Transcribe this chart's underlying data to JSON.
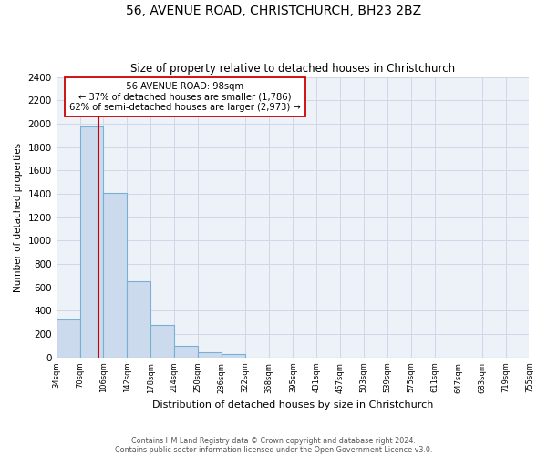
{
  "title": "56, AVENUE ROAD, CHRISTCHURCH, BH23 2BZ",
  "subtitle": "Size of property relative to detached houses in Christchurch",
  "xlabel": "Distribution of detached houses by size in Christchurch",
  "ylabel": "Number of detached properties",
  "bin_edges": [
    34,
    70,
    106,
    142,
    178,
    214,
    250,
    286,
    322,
    358,
    395,
    431,
    467,
    503,
    539,
    575,
    611,
    647,
    683,
    719,
    755
  ],
  "bin_heights": [
    325,
    1975,
    1410,
    650,
    280,
    100,
    45,
    30,
    0,
    0,
    0,
    0,
    0,
    0,
    0,
    0,
    0,
    0,
    0,
    0
  ],
  "bar_color": "#ccdaee",
  "bar_edge_color": "#7aafd4",
  "vline_x": 98,
  "vline_color": "#cc0000",
  "annotation_title": "56 AVENUE ROAD: 98sqm",
  "annotation_line1": "← 37% of detached houses are smaller (1,786)",
  "annotation_line2": "62% of semi-detached houses are larger (2,973) →",
  "annotation_box_edge": "#cc0000",
  "ylim": [
    0,
    2400
  ],
  "yticks": [
    0,
    200,
    400,
    600,
    800,
    1000,
    1200,
    1400,
    1600,
    1800,
    2000,
    2200,
    2400
  ],
  "tick_labels": [
    "34sqm",
    "70sqm",
    "106sqm",
    "142sqm",
    "178sqm",
    "214sqm",
    "250sqm",
    "286sqm",
    "322sqm",
    "358sqm",
    "395sqm",
    "431sqm",
    "467sqm",
    "503sqm",
    "539sqm",
    "575sqm",
    "611sqm",
    "647sqm",
    "683sqm",
    "719sqm",
    "755sqm"
  ],
  "footnote1": "Contains HM Land Registry data © Crown copyright and database right 2024.",
  "footnote2": "Contains public sector information licensed under the Open Government Licence v3.0.",
  "grid_color": "#d0d8e8",
  "background_color": "#edf2f9"
}
